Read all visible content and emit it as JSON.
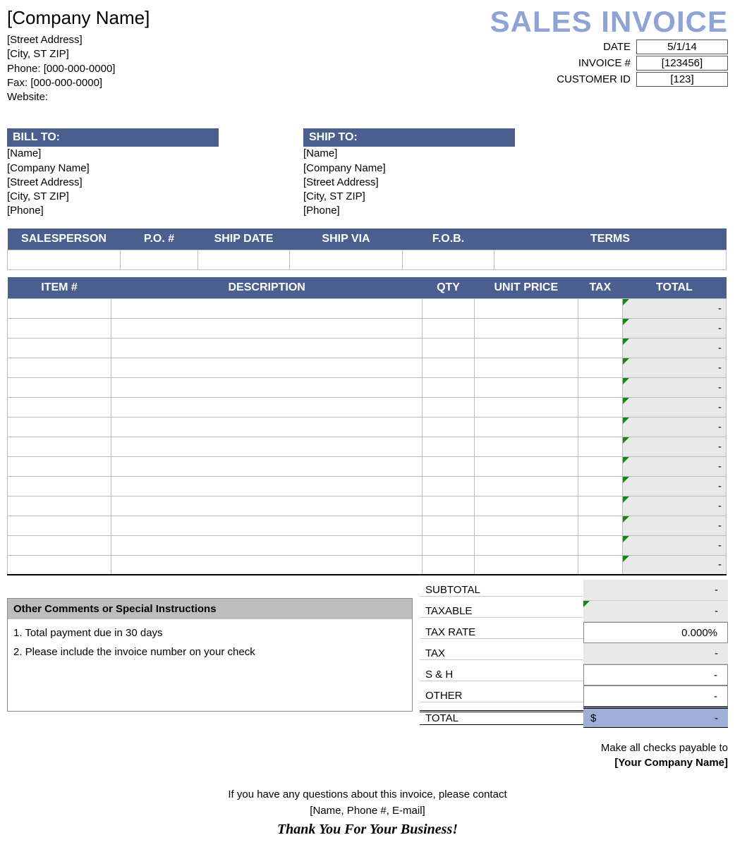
{
  "colors": {
    "header_blue": "#4a5f8e",
    "title_blue": "#8fa3d4",
    "total_row_bg": "#9eb0d9",
    "shade_bg": "#e9e9e9",
    "comments_head_bg": "#bdbdbd",
    "triangle_green": "#148a14"
  },
  "company": {
    "name": "[Company Name]",
    "street": "[Street Address]",
    "city_st_zip": "[City, ST  ZIP]",
    "phone_label": "Phone: [000-000-0000]",
    "fax_label": "Fax: [000-000-0000]",
    "website_label": "Website:"
  },
  "doc": {
    "title": "SALES INVOICE",
    "date_label": "DATE",
    "date_value": "5/1/14",
    "invoice_label": "INVOICE #",
    "invoice_value": "[123456]",
    "customer_label": "CUSTOMER ID",
    "customer_value": "[123]"
  },
  "bill_to": {
    "heading": "BILL TO:",
    "name": "[Name]",
    "company": "[Company Name]",
    "street": "[Street Address]",
    "city_st_zip": "[City, ST  ZIP]",
    "phone": "[Phone]"
  },
  "ship_to": {
    "heading": "SHIP TO:",
    "name": "[Name]",
    "company": "[Company Name]",
    "street": "[Street Address]",
    "city_st_zip": "[City, ST  ZIP]",
    "phone": "[Phone]"
  },
  "order_headers": {
    "salesperson": "SALESPERSON",
    "po": "P.O. #",
    "ship_date": "SHIP DATE",
    "ship_via": "SHIP VIA",
    "fob": "F.O.B.",
    "terms": "TERMS"
  },
  "item_headers": {
    "item": "ITEM #",
    "description": "DESCRIPTION",
    "qty": "QTY",
    "unit_price": "UNIT PRICE",
    "tax": "TAX",
    "total": "TOTAL"
  },
  "item_row_count": 14,
  "item_total_placeholder": "-",
  "summary": {
    "subtotal_label": "SUBTOTAL",
    "subtotal_value": "-",
    "taxable_label": "TAXABLE",
    "taxable_value": "-",
    "taxrate_label": "TAX RATE",
    "taxrate_value": "0.000%",
    "tax_label": "TAX",
    "tax_value": "-",
    "sh_label": "S & H",
    "sh_value": "-",
    "other_label": "OTHER",
    "other_value": "-",
    "total_label": "TOTAL",
    "total_currency": "$",
    "total_value": "-"
  },
  "comments": {
    "heading": "Other Comments or Special Instructions",
    "line1": "1. Total payment due in 30 days",
    "line2": "2. Please include the invoice number on your check"
  },
  "payable": {
    "line1": "Make all checks payable to",
    "line2": "[Your Company Name]"
  },
  "footer": {
    "line1": "If you have any questions about this invoice, please contact",
    "line2": "[Name, Phone #, E-mail]",
    "thanks": "Thank You For Your Business!"
  }
}
